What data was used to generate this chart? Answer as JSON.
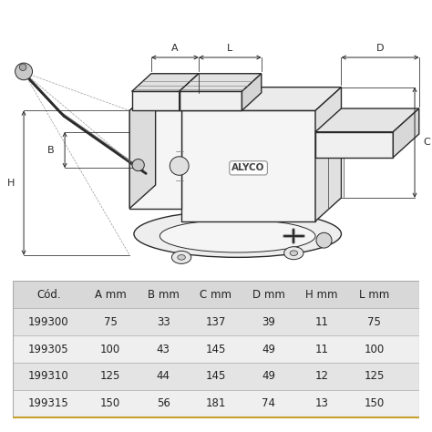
{
  "bg_color": "#ffffff",
  "line_color": "#2a2a2a",
  "dim_color": "#2a2a2a",
  "brand": "ALYCO",
  "table_header": [
    "Cód.",
    "A mm",
    "B mm",
    "C mm",
    "D mm",
    "H mm",
    "L mm"
  ],
  "table_rows": [
    [
      "199300",
      "75",
      "33",
      "137",
      "39",
      "11",
      "75"
    ],
    [
      "199305",
      "100",
      "43",
      "145",
      "49",
      "11",
      "100"
    ],
    [
      "199310",
      "125",
      "44",
      "145",
      "49",
      "12",
      "125"
    ],
    [
      "199315",
      "150",
      "56",
      "181",
      "74",
      "13",
      "150"
    ]
  ],
  "font_size_table": 8.5,
  "table_header_bg": "#d8d8d8",
  "table_row_bg_even": "#e4e4e4",
  "table_row_bg_odd": "#efefef",
  "table_border": "#aaaaaa",
  "table_bottom_border": "#c8a030"
}
